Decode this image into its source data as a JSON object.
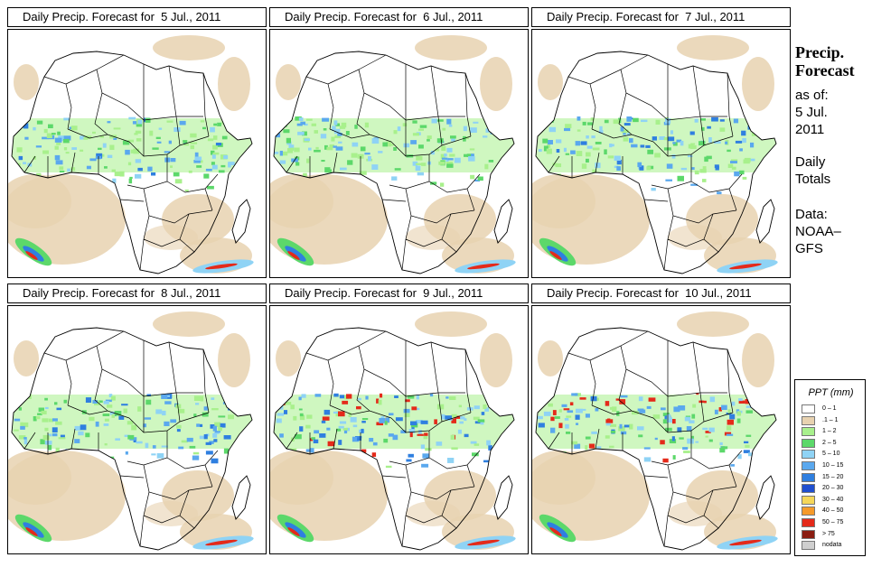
{
  "sidebar": {
    "title_line1": "Precip.",
    "title_line2": "Forecast",
    "asof_line1": "as of:",
    "asof_line2": "5 Jul.",
    "asof_line3": "2011",
    "totals_line1": "Daily",
    "totals_line2": "Totals",
    "data_line1": "Data:",
    "data_line2": "NOAA–",
    "data_line3": "GFS"
  },
  "panels": [
    {
      "title": "Daily Precip. Forecast for  5 Jul., 2011"
    },
    {
      "title": "Daily Precip. Forecast for  6 Jul., 2011"
    },
    {
      "title": "Daily Precip. Forecast for  7 Jul., 2011"
    },
    {
      "title": "Daily Precip. Forecast for  8 Jul., 2011"
    },
    {
      "title": "Daily Precip. Forecast for  9 Jul., 2011"
    },
    {
      "title": "Daily Precip. Forecast for  10 Jul., 2011"
    }
  ],
  "legend": {
    "title": "PPT (mm)",
    "items": [
      {
        "label": "0 – 1",
        "color": "#ffffff"
      },
      {
        "label": ".1 – 1",
        "color": "#e8d2b0"
      },
      {
        "label": "1 – 2",
        "color": "#a8f08c"
      },
      {
        "label": "2 – 5",
        "color": "#5cd86a"
      },
      {
        "label": "5 – 10",
        "color": "#8fd3f5"
      },
      {
        "label": "10 – 15",
        "color": "#5aa8ee"
      },
      {
        "label": "15 – 20",
        "color": "#2f7fe0"
      },
      {
        "label": "20 – 30",
        "color": "#1f4fd0"
      },
      {
        "label": "30 – 40",
        "color": "#f5d75a"
      },
      {
        "label": "40 – 50",
        "color": "#f59a2a"
      },
      {
        "label": "50 – 75",
        "color": "#e42a1a"
      },
      {
        "label": "> 75",
        "color": "#8a1d12"
      },
      {
        "label": "nodata",
        "color": "#cfcfcf"
      }
    ]
  }
}
